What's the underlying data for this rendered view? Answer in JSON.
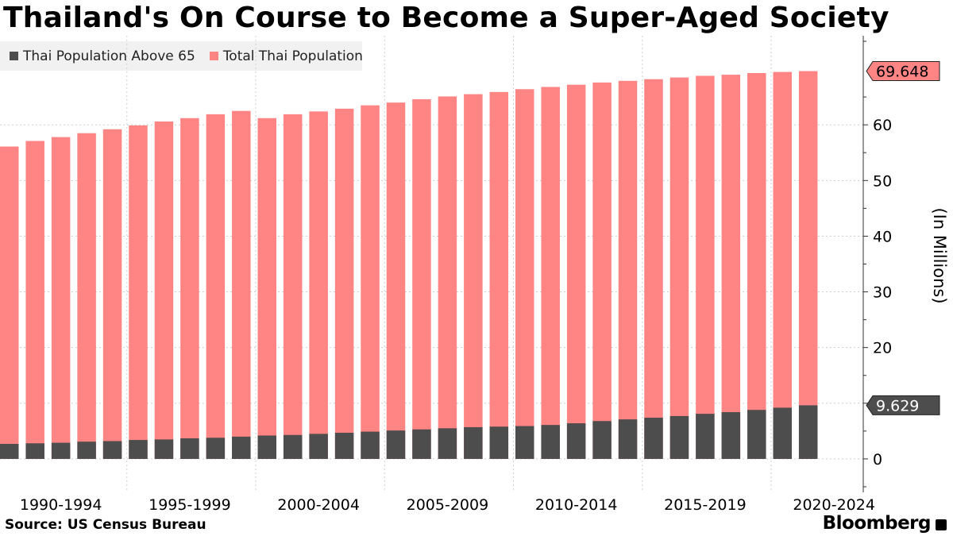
{
  "title": "Thailand's On Course to Become a Super-Aged Society",
  "source": "Source: US Census Bureau",
  "brand": "Bloomberg",
  "colors": {
    "above65": "#4d4d4d",
    "total": "#ff8484",
    "legend_bg": "#f1f1f1"
  },
  "chart_data": {
    "type": "bar",
    "ylabel": "(In Millions)",
    "ylim": [
      -6,
      76
    ],
    "yticks": [
      0,
      10,
      20,
      30,
      40,
      50,
      60
    ],
    "x_tick_labels": [
      "1990-1994",
      "1995-1999",
      "2000-2004",
      "2005-2009",
      "2010-2014",
      "2015-2019",
      "2020-2024"
    ],
    "series": [
      {
        "name": "Thai Population Above 65",
        "color": "#4d4d4d",
        "values": [
          2.7,
          2.8,
          2.9,
          3.1,
          3.2,
          3.4,
          3.5,
          3.7,
          3.8,
          4.0,
          4.2,
          4.3,
          4.5,
          4.7,
          4.9,
          5.1,
          5.3,
          5.5,
          5.7,
          5.8,
          5.9,
          6.1,
          6.4,
          6.8,
          7.1,
          7.4,
          7.7,
          8.1,
          8.4,
          8.8,
          9.2,
          9.629
        ],
        "last_label": "9.629"
      },
      {
        "name": "Total Thai Population",
        "color": "#ff8484",
        "values": [
          56.1,
          57.1,
          57.8,
          58.5,
          59.2,
          59.9,
          60.6,
          61.2,
          61.9,
          62.5,
          61.2,
          61.9,
          62.4,
          62.9,
          63.5,
          64.0,
          64.6,
          65.1,
          65.5,
          65.9,
          66.4,
          66.8,
          67.2,
          67.6,
          67.9,
          68.2,
          68.5,
          68.8,
          69.0,
          69.3,
          69.5,
          69.648
        ],
        "last_label": "69.648"
      }
    ]
  }
}
